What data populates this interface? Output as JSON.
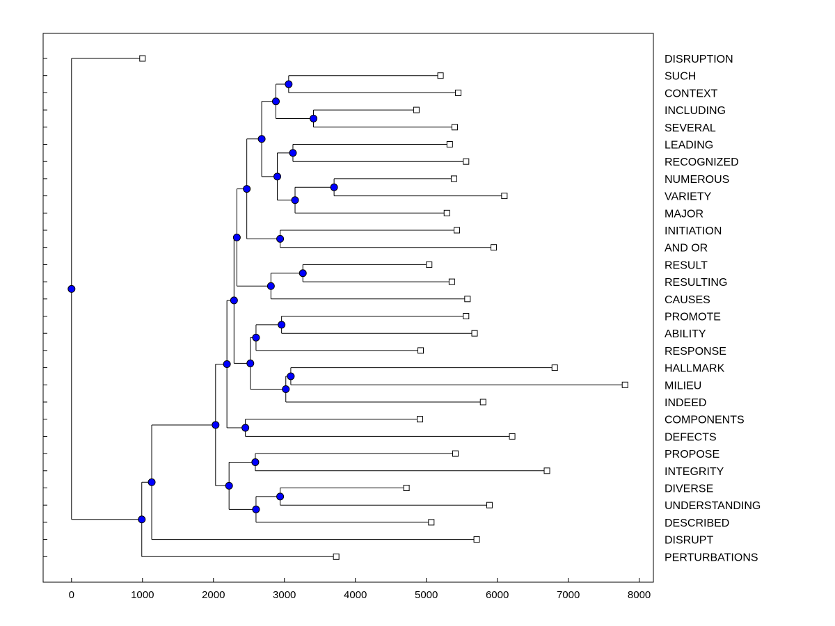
{
  "chart_data": {
    "type": "dendrogram",
    "orientation": "horizontal",
    "title": "",
    "xlabel": "",
    "ylabel": "",
    "xlim": [
      -400,
      8200
    ],
    "x_ticks": [
      0,
      1000,
      2000,
      3000,
      4000,
      5000,
      6000,
      7000,
      8000
    ],
    "x_tick_labels": [
      "0",
      "1000",
      "2000",
      "3000",
      "4000",
      "5000",
      "6000",
      "7000",
      "8000"
    ],
    "grid": false,
    "leaves": [
      {
        "label": "DISRUPTION",
        "value": 1000
      },
      {
        "label": "SUCH",
        "value": 5200
      },
      {
        "label": "CONTEXT",
        "value": 5450
      },
      {
        "label": "INCLUDING",
        "value": 4860
      },
      {
        "label": "SEVERAL",
        "value": 5400
      },
      {
        "label": "LEADING",
        "value": 5330
      },
      {
        "label": "RECOGNIZED",
        "value": 5560
      },
      {
        "label": "NUMEROUS",
        "value": 5390
      },
      {
        "label": "VARIETY",
        "value": 6100
      },
      {
        "label": "MAJOR",
        "value": 5290
      },
      {
        "label": "INITIATION",
        "value": 5430
      },
      {
        "label": "AND OR",
        "value": 5950
      },
      {
        "label": "RESULT",
        "value": 5040
      },
      {
        "label": "RESULTING",
        "value": 5360
      },
      {
        "label": "CAUSES",
        "value": 5580
      },
      {
        "label": "PROMOTE",
        "value": 5560
      },
      {
        "label": "ABILITY",
        "value": 5680
      },
      {
        "label": "RESPONSE",
        "value": 4920
      },
      {
        "label": "HALLMARK",
        "value": 6810
      },
      {
        "label": "MILIEU",
        "value": 7800
      },
      {
        "label": "INDEED",
        "value": 5800
      },
      {
        "label": "COMPONENTS",
        "value": 4910
      },
      {
        "label": "DEFECTS",
        "value": 6210
      },
      {
        "label": "PROPOSE",
        "value": 5410
      },
      {
        "label": "INTEGRITY",
        "value": 6700
      },
      {
        "label": "DIVERSE",
        "value": 4720
      },
      {
        "label": "UNDERSTANDING",
        "value": 5890
      },
      {
        "label": "DESCRIBED",
        "value": 5070
      },
      {
        "label": "DISRUPT",
        "value": 5710
      },
      {
        "label": "PERTURBATIONS",
        "value": 3730
      }
    ],
    "merges": [
      {
        "id": "n1",
        "children": [
          "SUCH",
          "CONTEXT"
        ],
        "value": 3060
      },
      {
        "id": "n2",
        "children": [
          "INCLUDING",
          "SEVERAL"
        ],
        "value": 3410
      },
      {
        "id": "n3",
        "children": [
          "n1",
          "n2"
        ],
        "value": 2880
      },
      {
        "id": "n4",
        "children": [
          "LEADING",
          "RECOGNIZED"
        ],
        "value": 3120
      },
      {
        "id": "n5",
        "children": [
          "NUMEROUS",
          "VARIETY"
        ],
        "value": 3700
      },
      {
        "id": "n6",
        "children": [
          "n5",
          "MAJOR"
        ],
        "value": 3150
      },
      {
        "id": "n7",
        "children": [
          "n4",
          "n6"
        ],
        "value": 2900
      },
      {
        "id": "n8",
        "children": [
          "n3",
          "n7"
        ],
        "value": 2680
      },
      {
        "id": "n9",
        "children": [
          "INITIATION",
          "AND OR"
        ],
        "value": 2940
      },
      {
        "id": "n10",
        "children": [
          "n8",
          "n9"
        ],
        "value": 2470
      },
      {
        "id": "n11",
        "children": [
          "RESULT",
          "RESULTING"
        ],
        "value": 3260
      },
      {
        "id": "n12",
        "children": [
          "n11",
          "CAUSES"
        ],
        "value": 2810
      },
      {
        "id": "n13",
        "children": [
          "n10",
          "n12"
        ],
        "value": 2330
      },
      {
        "id": "n14",
        "children": [
          "PROMOTE",
          "ABILITY"
        ],
        "value": 2960
      },
      {
        "id": "n15",
        "children": [
          "n14",
          "RESPONSE"
        ],
        "value": 2600
      },
      {
        "id": "n16",
        "children": [
          "HALLMARK",
          "MILIEU"
        ],
        "value": 3090
      },
      {
        "id": "n17",
        "children": [
          "n16",
          "INDEED"
        ],
        "value": 3020
      },
      {
        "id": "n18",
        "children": [
          "n15",
          "n17"
        ],
        "value": 2520
      },
      {
        "id": "n19",
        "children": [
          "n13",
          "n18"
        ],
        "value": 2290
      },
      {
        "id": "n20",
        "children": [
          "COMPONENTS",
          "DEFECTS"
        ],
        "value": 2450
      },
      {
        "id": "n21",
        "children": [
          "n19",
          "n20"
        ],
        "value": 2190
      },
      {
        "id": "n22",
        "children": [
          "PROPOSE",
          "INTEGRITY"
        ],
        "value": 2590
      },
      {
        "id": "n23",
        "children": [
          "DIVERSE",
          "UNDERSTANDING"
        ],
        "value": 2940
      },
      {
        "id": "n24",
        "children": [
          "n23",
          "DESCRIBED"
        ],
        "value": 2600
      },
      {
        "id": "n25",
        "children": [
          "n22",
          "n24"
        ],
        "value": 2220
      },
      {
        "id": "n26",
        "children": [
          "n21",
          "n25"
        ],
        "value": 2030
      },
      {
        "id": "n27",
        "children": [
          "n26",
          "DISRUPT"
        ],
        "value": 1130
      },
      {
        "id": "n28",
        "children": [
          "n27",
          "PERTURBATIONS"
        ],
        "value": 990
      },
      {
        "id": "n29",
        "children": [
          "DISRUPTION",
          "n28"
        ],
        "value": 0
      }
    ],
    "colors": {
      "node_fill": "#0000ff",
      "leaf_fill": "#ffffff",
      "line": "#000000",
      "background": "#ffffff"
    }
  }
}
